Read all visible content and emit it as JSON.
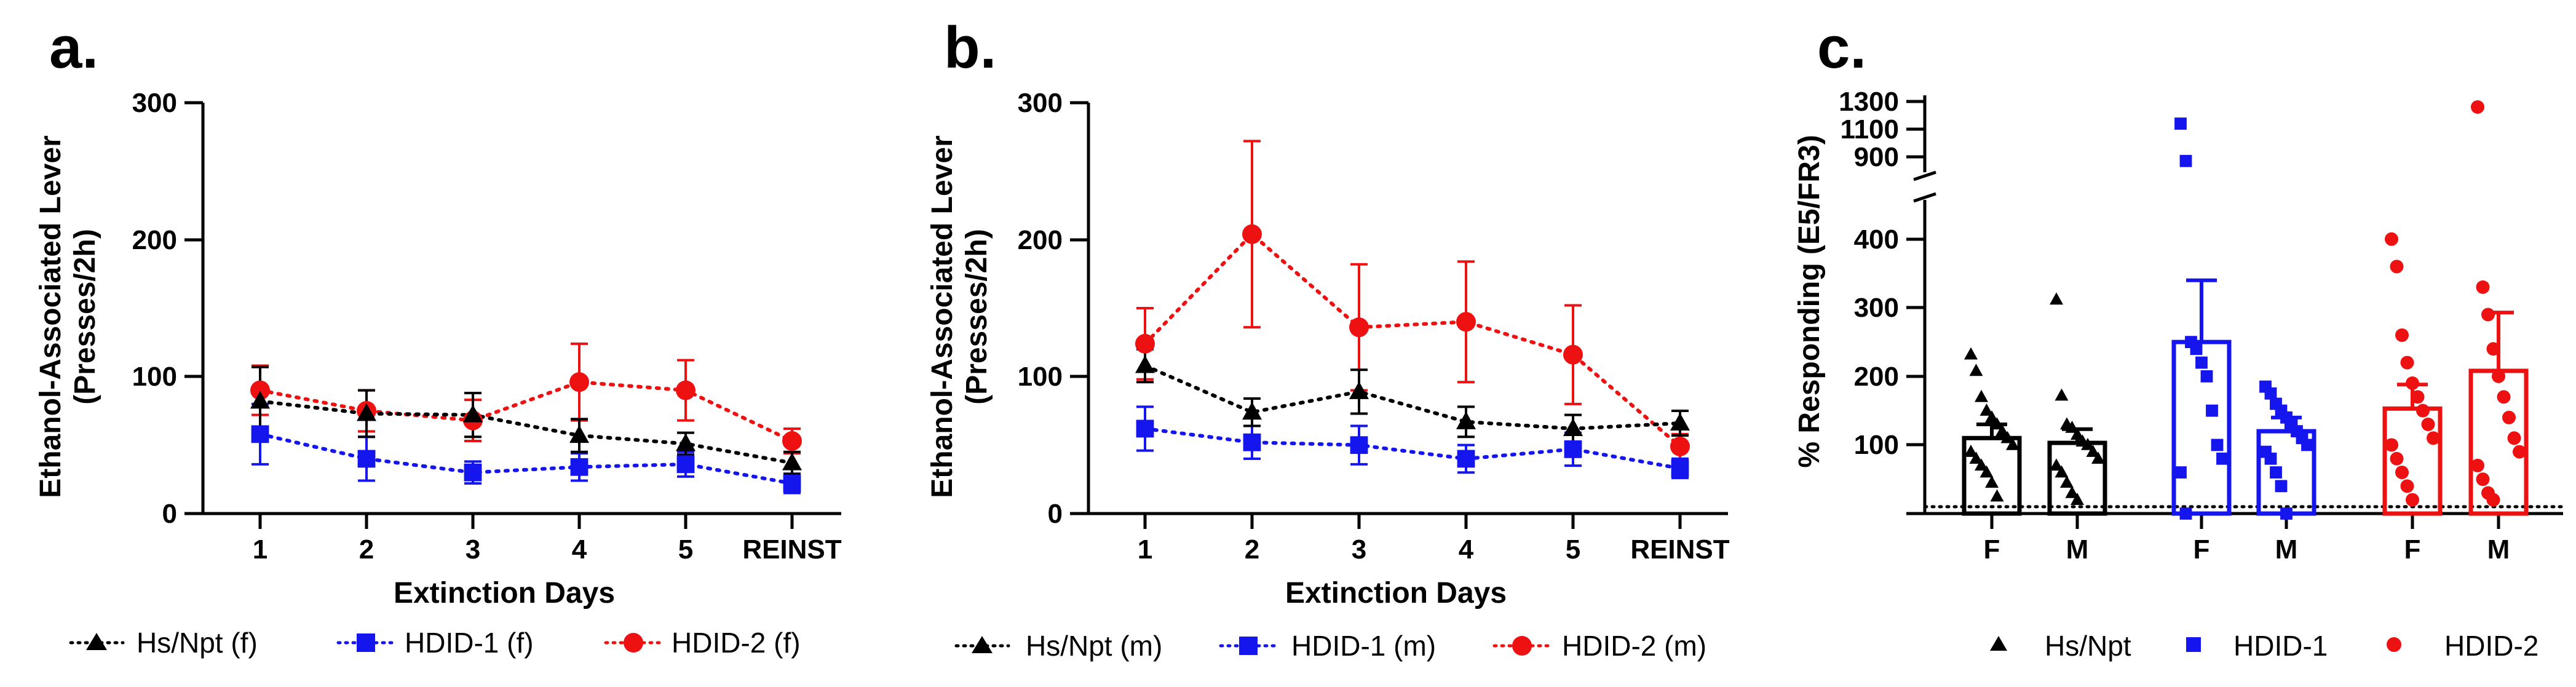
{
  "chart_data": [
    {
      "id": "a",
      "type": "line",
      "panel_label": "a.",
      "title": "",
      "ylabel_line1": "Ethanol-Associated Lever",
      "ylabel_line2": "(Presses/2h)",
      "xlabel": "Extinction Days",
      "categories": [
        "1",
        "2",
        "3",
        "4",
        "5",
        "REINST"
      ],
      "ylim": [
        0,
        300
      ],
      "yticks": [
        "0",
        "100",
        "200",
        "300"
      ],
      "grid": false,
      "legend_position": "bottom",
      "series": [
        {
          "name": "Hs/Npt (f)",
          "color": "#000000",
          "marker": "triangle",
          "values": [
            82,
            73,
            72,
            57,
            51,
            37
          ],
          "errors": [
            25,
            17,
            16,
            12,
            8,
            8
          ]
        },
        {
          "name": "HDID-1 (f)",
          "color": "#1515ee",
          "marker": "square",
          "values": [
            58,
            40,
            30,
            34,
            36,
            22
          ],
          "errors": [
            22,
            16,
            8,
            10,
            9,
            7
          ]
        },
        {
          "name": "HDID-2 (f)",
          "color": "#ee1111",
          "marker": "circle",
          "values": [
            90,
            75,
            68,
            96,
            90,
            53
          ],
          "errors": [
            18,
            15,
            15,
            28,
            22,
            9
          ]
        }
      ]
    },
    {
      "id": "b",
      "type": "line",
      "panel_label": "b.",
      "title": "",
      "ylabel_line1": "Ethanol-Associated Lever",
      "ylabel_line2": "(Presses/2h)",
      "xlabel": "Extinction Days",
      "categories": [
        "1",
        "2",
        "3",
        "4",
        "5",
        "REINST"
      ],
      "ylim": [
        0,
        300
      ],
      "yticks": [
        "0",
        "100",
        "200",
        "300"
      ],
      "grid": false,
      "legend_position": "bottom",
      "series": [
        {
          "name": "Hs/Npt (m)",
          "color": "#000000",
          "marker": "triangle",
          "values": [
            108,
            74,
            89,
            67,
            62,
            66
          ],
          "errors": [
            12,
            10,
            16,
            11,
            10,
            9
          ]
        },
        {
          "name": "HDID-1 (m)",
          "color": "#1515ee",
          "marker": "square",
          "values": [
            62,
            52,
            50,
            40,
            47,
            33
          ],
          "errors": [
            16,
            12,
            14,
            10,
            12,
            7
          ]
        },
        {
          "name": "HDID-2 (m)",
          "color": "#ee1111",
          "marker": "circle",
          "values": [
            124,
            204,
            136,
            140,
            116,
            49
          ],
          "errors": [
            26,
            68,
            46,
            44,
            36,
            9
          ]
        }
      ]
    },
    {
      "id": "c",
      "type": "bar",
      "panel_label": "c.",
      "title": "",
      "ylabel": "% Responding (E5/FR3)",
      "categories": [
        "F",
        "M",
        "F",
        "M",
        "F",
        "M"
      ],
      "group_of_category": [
        "Hs/Npt",
        "Hs/Npt",
        "HDID-1",
        "HDID-1",
        "HDID-2",
        "HDID-2"
      ],
      "ylim_lower": [
        0,
        450
      ],
      "ylim_upper": [
        800,
        1350
      ],
      "yticks_lower": [
        "100",
        "200",
        "300",
        "400"
      ],
      "yticks_upper": [
        "900",
        "1100",
        "1300"
      ],
      "reference_line": 10,
      "grid": false,
      "legend_position": "bottom",
      "series": [
        {
          "name": "Hs/Npt",
          "color": "#000000",
          "marker": "triangle"
        },
        {
          "name": "HDID-1",
          "color": "#1515ee",
          "marker": "square"
        },
        {
          "name": "HDID-2",
          "color": "#ee1111",
          "marker": "circle"
        }
      ],
      "bars": [
        {
          "value": 110,
          "sem": 20,
          "points": [
            232,
            208,
            170,
            150,
            140,
            130,
            120,
            110,
            100,
            90,
            80,
            70,
            60,
            45,
            25
          ]
        },
        {
          "value": 103,
          "sem": 20,
          "points": [
            312,
            172,
            130,
            125,
            115,
            105,
            100,
            90,
            80,
            70,
            60,
            45,
            30,
            20
          ]
        },
        {
          "value": 250,
          "sem": 90,
          "points": [
            1140,
            870,
            250,
            240,
            220,
            200,
            150,
            100,
            80,
            60,
            0
          ]
        },
        {
          "value": 120,
          "sem": 20,
          "points": [
            185,
            175,
            160,
            150,
            140,
            130,
            120,
            110,
            100,
            90,
            80,
            60,
            40,
            0
          ]
        },
        {
          "value": 153,
          "sem": 35,
          "points": [
            400,
            360,
            260,
            220,
            190,
            170,
            150,
            130,
            110,
            100,
            80,
            60,
            40,
            20
          ]
        },
        {
          "value": 208,
          "sem": 85,
          "points": [
            1260,
            330,
            290,
            240,
            200,
            170,
            140,
            110,
            90,
            70,
            50,
            30,
            20
          ]
        }
      ]
    }
  ]
}
